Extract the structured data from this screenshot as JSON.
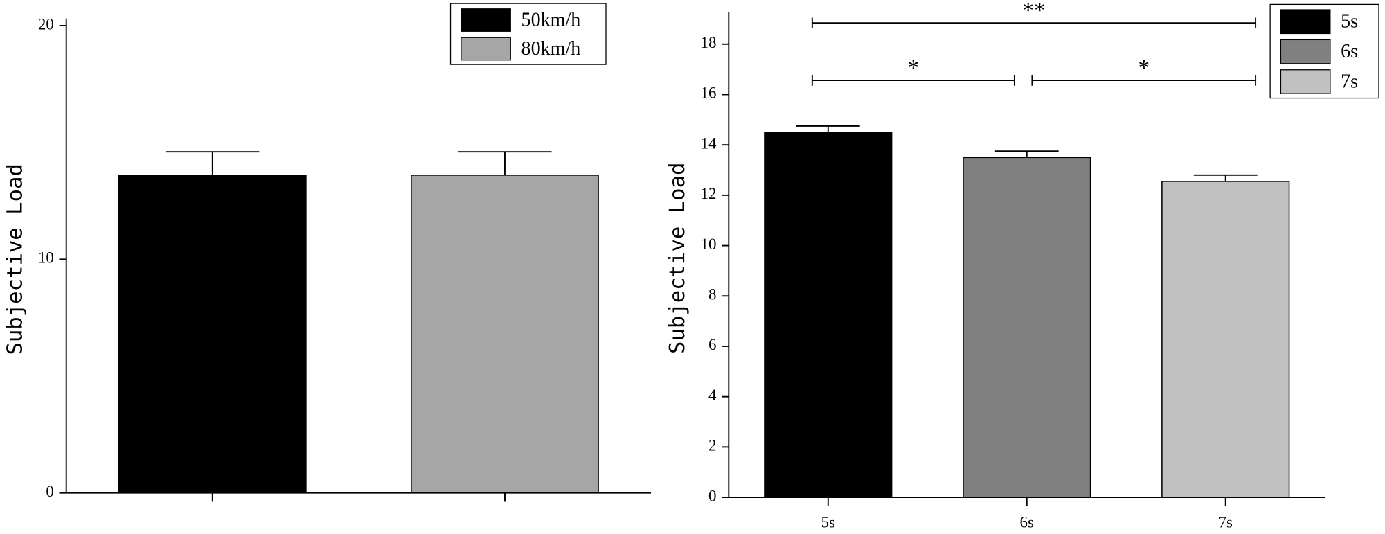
{
  "chart_data": [
    {
      "type": "bar",
      "y_label": "Subjective Load",
      "categories": [
        null,
        null
      ],
      "values": [
        13.6,
        13.6
      ],
      "errors": [
        1.0,
        1.0
      ],
      "colors": [
        "#000000",
        "#a6a6a6"
      ],
      "legend": [
        "50km/h",
        "80km/h"
      ],
      "ylim": [
        0,
        20
      ],
      "yticks": [
        0,
        10,
        20
      ]
    },
    {
      "type": "bar",
      "y_label": "Subjective Load",
      "categories": [
        "5s",
        "6s",
        "7s"
      ],
      "values": [
        14.5,
        13.5,
        12.55
      ],
      "errors": [
        0.25,
        0.25,
        0.25
      ],
      "colors": [
        "#000000",
        "#808080",
        "#c0c0c0"
      ],
      "legend": [
        "5s",
        "6s",
        "7s"
      ],
      "ylim": [
        0,
        19
      ],
      "yticks": [
        0,
        2,
        4,
        6,
        8,
        10,
        12,
        14,
        16,
        18
      ],
      "annotations": [
        {
          "text": "**",
          "from": 0,
          "to": 2
        },
        {
          "text": "*",
          "from": 0,
          "to": 1
        },
        {
          "text": "*",
          "from": 1,
          "to": 2
        }
      ]
    }
  ]
}
